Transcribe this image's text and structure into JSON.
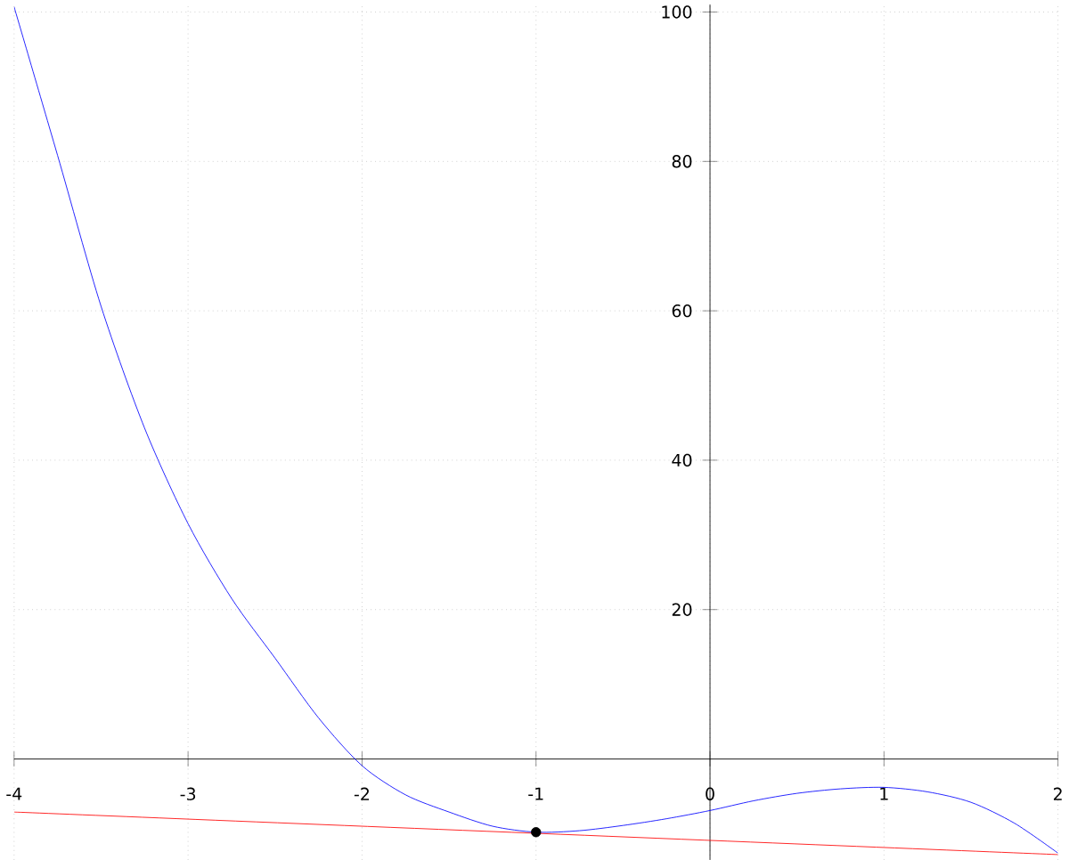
{
  "chart_data": {
    "type": "line",
    "xlim": [
      -4,
      2
    ],
    "ylim": [
      -13.5,
      101
    ],
    "xticks": [
      -4,
      -3,
      -2,
      -1,
      0,
      1,
      2
    ],
    "yticks": [
      20,
      40,
      60,
      80,
      100
    ],
    "grid": true,
    "series": [
      {
        "color": "#0000ff",
        "marker": "none",
        "x": [
          -4,
          -3.75,
          -3.5,
          -3.25,
          -3,
          -2.75,
          -2.5,
          -2.25,
          -2,
          -1.75,
          -1.5,
          -1.25,
          -1,
          -0.75,
          -0.5,
          -0.25,
          0,
          0.25,
          0.5,
          0.75,
          1,
          1.25,
          1.5,
          1.75,
          2
        ],
        "values": [
          100.7,
          80.8,
          60.6,
          44.3,
          31.5,
          21.5,
          13.5,
          5.5,
          -0.9,
          -4.8,
          -7.1,
          -9.0,
          -9.8,
          -9.6,
          -8.9,
          -8.0,
          -6.9,
          -5.6,
          -4.6,
          -4.0,
          -3.8,
          -4.4,
          -5.8,
          -8.6,
          -12.6
        ]
      },
      {
        "type": "line",
        "color": "#ff0000",
        "marker": "none",
        "x": [
          -4,
          2
        ],
        "values": [
          -7.1,
          -12.8
        ]
      },
      {
        "type": "scatter",
        "color": "#000000",
        "marker": "circle",
        "x": [
          -1
        ],
        "values": [
          -9.8
        ]
      }
    ]
  }
}
